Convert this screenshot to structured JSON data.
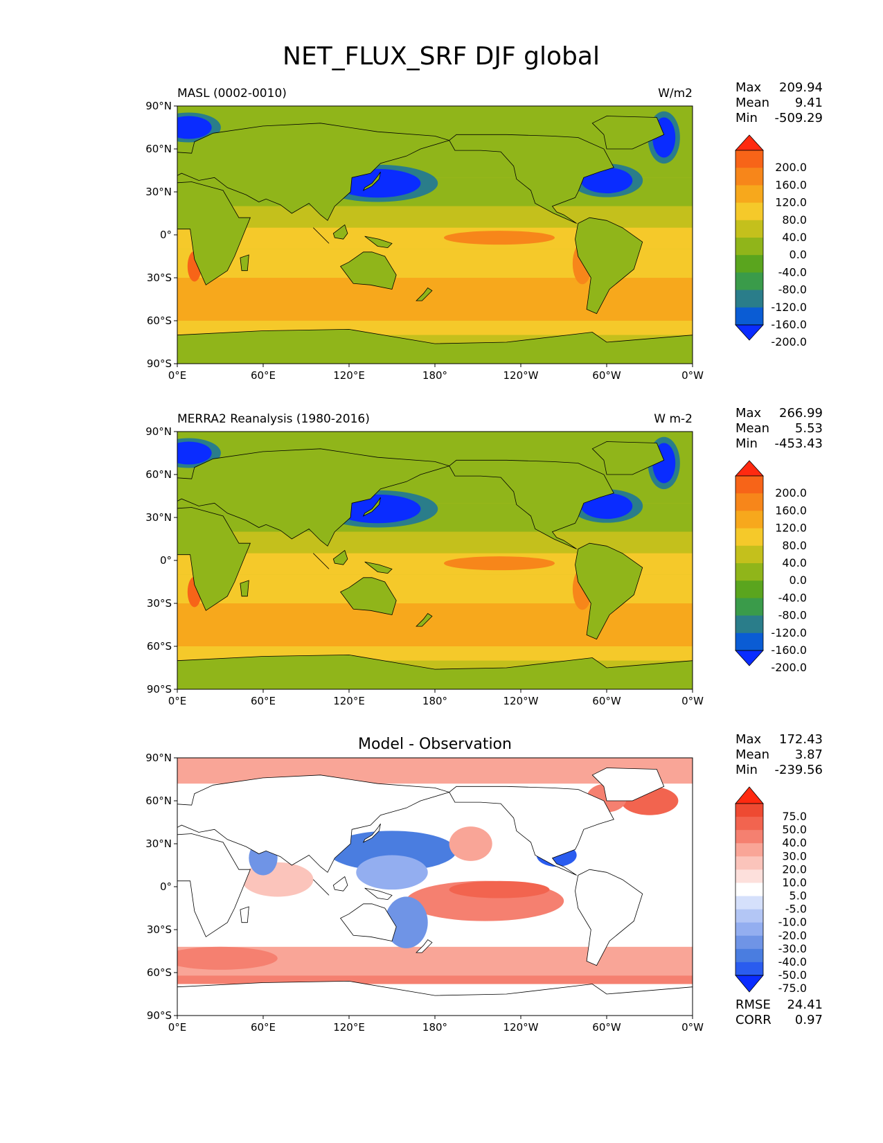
{
  "figure_title": "NET_FLUX_SRF DJF global",
  "colors": {
    "full_field_levels": [
      "#0a2cff",
      "#0a5cd4",
      "#2a7d8a",
      "#3a9b4a",
      "#5aa51e",
      "#90b51a",
      "#c4c01c",
      "#f5c92a",
      "#f7a81c",
      "#f7861a",
      "#f76418",
      "#ff2a10"
    ],
    "diff_levels": [
      "#0a2cff",
      "#2a5cef",
      "#4a7de0",
      "#6f94e6",
      "#93aef0",
      "#b3c6f5",
      "#d5e0fb",
      "#ffffff",
      "#fde0dc",
      "#fbc4bb",
      "#f9a597",
      "#f58070",
      "#f2644f",
      "#ee4a32",
      "#ff2a10"
    ],
    "land_outline": "#000000"
  },
  "chart_data": [
    {
      "type": "heatmap",
      "title_left": "MASL (0002-0010)",
      "title_right": "W/m2",
      "x_ticks": [
        "0°E",
        "60°E",
        "120°E",
        "180°",
        "120°W",
        "60°W",
        "0°W"
      ],
      "y_ticks": [
        "90°N",
        "60°N",
        "30°N",
        "0°",
        "30°S",
        "60°S",
        "90°S"
      ],
      "xlim": [
        0,
        360
      ],
      "ylim": [
        -90,
        90
      ],
      "stats": {
        "max_label": "Max",
        "max": "209.94",
        "mean_label": "Mean",
        "mean": "9.41",
        "min_label": "Min",
        "min": "-509.29"
      },
      "colorbar_labels": [
        "200.0",
        "160.0",
        "120.0",
        "80.0",
        "40.0",
        "0.0",
        "-40.0",
        "-80.0",
        "-120.0",
        "-160.0",
        "-200.0"
      ]
    },
    {
      "type": "heatmap",
      "title_left": "MERRA2 Reanalysis (1980-2016)",
      "title_right": "W m-2",
      "x_ticks": [
        "0°E",
        "60°E",
        "120°E",
        "180°",
        "120°W",
        "60°W",
        "0°W"
      ],
      "y_ticks": [
        "90°N",
        "60°N",
        "30°N",
        "0°",
        "30°S",
        "60°S",
        "90°S"
      ],
      "xlim": [
        0,
        360
      ],
      "ylim": [
        -90,
        90
      ],
      "stats": {
        "max_label": "Max",
        "max": "266.99",
        "mean_label": "Mean",
        "mean": "5.53",
        "min_label": "Min",
        "min": "-453.43"
      },
      "colorbar_labels": [
        "200.0",
        "160.0",
        "120.0",
        "80.0",
        "40.0",
        "0.0",
        "-40.0",
        "-80.0",
        "-120.0",
        "-160.0",
        "-200.0"
      ]
    },
    {
      "type": "heatmap",
      "title_center": "Model - Observation",
      "x_ticks": [
        "0°E",
        "60°E",
        "120°E",
        "180°",
        "120°W",
        "60°W",
        "0°W"
      ],
      "y_ticks": [
        "90°N",
        "60°N",
        "30°N",
        "0°",
        "30°S",
        "60°S",
        "90°S"
      ],
      "xlim": [
        0,
        360
      ],
      "ylim": [
        -90,
        90
      ],
      "stats": {
        "max_label": "Max",
        "max": "172.43",
        "mean_label": "Mean",
        "mean": "3.87",
        "min_label": "Min",
        "min": "-239.56"
      },
      "colorbar_labels": [
        "75.0",
        "50.0",
        "40.0",
        "30.0",
        "20.0",
        "10.0",
        "5.0",
        "-5.0",
        "-10.0",
        "-20.0",
        "-30.0",
        "-40.0",
        "-50.0",
        "-75.0"
      ],
      "rmse_label": "RMSE",
      "rmse": "24.41",
      "corr_label": "CORR",
      "corr": "0.97"
    }
  ]
}
